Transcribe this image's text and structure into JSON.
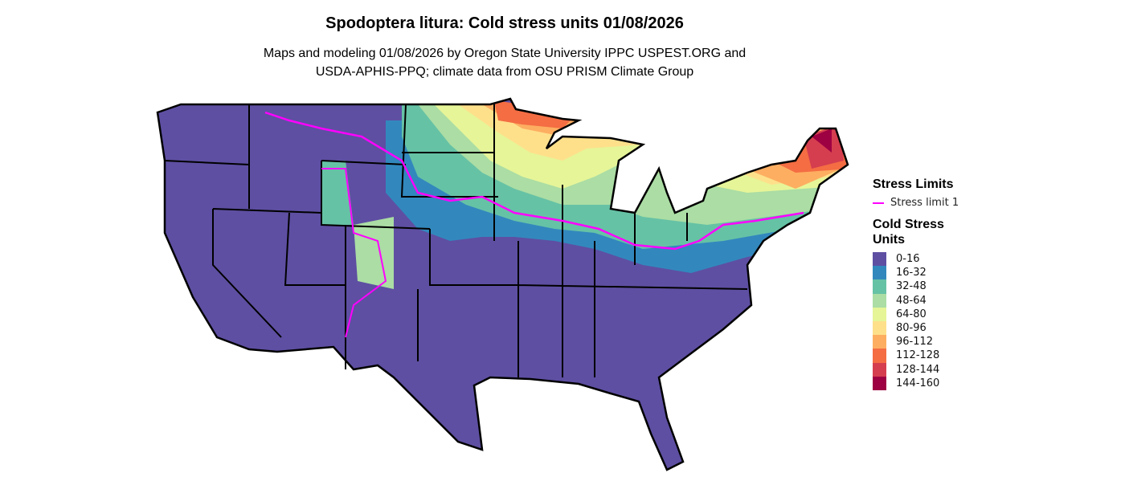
{
  "title": "Spodoptera litura: Cold stress units 01/08/2026",
  "subtitle_line1": "Maps and modeling 01/08/2026 by Oregon State University IPPC USPEST.ORG and",
  "subtitle_line2": "USDA-APHIS-PPQ; climate data from OSU PRISM Climate Group",
  "legend": {
    "limits_title": "Stress Limits",
    "limit_label": "Stress limit 1",
    "limit_color": "#ff00ff",
    "units_title": "Cold Stress Units",
    "bins": [
      {
        "label": "0-16",
        "color": "#5E4FA2"
      },
      {
        "label": "16-32",
        "color": "#3288BD"
      },
      {
        "label": "32-48",
        "color": "#66C2A5"
      },
      {
        "label": "48-64",
        "color": "#ABDDA4"
      },
      {
        "label": "64-80",
        "color": "#E6F598"
      },
      {
        "label": "80-96",
        "color": "#FEE08B"
      },
      {
        "label": "96-112",
        "color": "#FDAE61"
      },
      {
        "label": "112-128",
        "color": "#F46D43"
      },
      {
        "label": "128-144",
        "color": "#D53E4F"
      },
      {
        "label": "144-160",
        "color": "#9E0142"
      }
    ]
  }
}
